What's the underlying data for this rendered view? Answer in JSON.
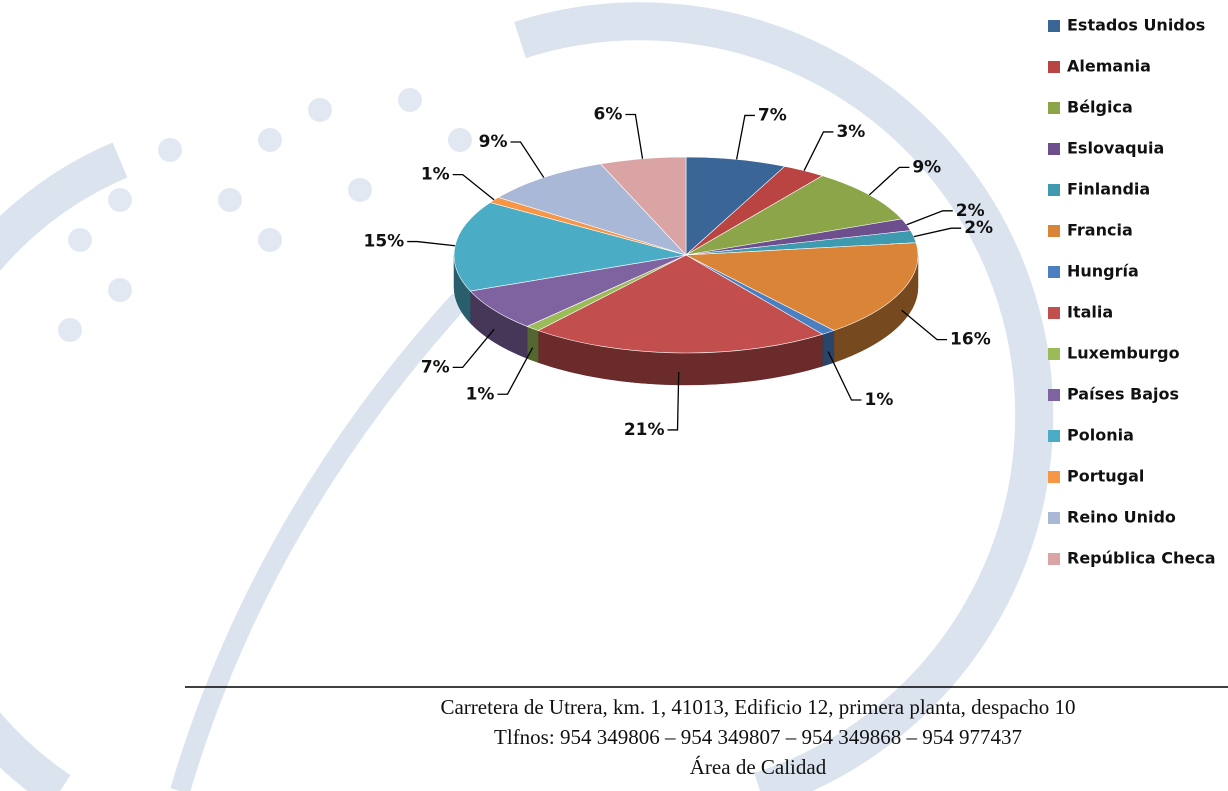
{
  "chart_data": {
    "type": "pie",
    "categories": [
      "Estados Unidos",
      "Alemania",
      "Bélgica",
      "Eslovaquia",
      "Finlandia",
      "Francia",
      "Hungría",
      "Italia",
      "Luxemburgo",
      "Países Bajos",
      "Polonia",
      "Portugal",
      "Reino Unido",
      "República Checa"
    ],
    "values": [
      7,
      3,
      9,
      2,
      2,
      16,
      1,
      21,
      1,
      7,
      15,
      1,
      9,
      6
    ],
    "value_labels": [
      "7%",
      "3%",
      "9%",
      "2%",
      "2%",
      "16%",
      "1%",
      "21%",
      "1%",
      "7%",
      "15%",
      "1%",
      "9%",
      "6%"
    ],
    "colors": [
      "#3A6597",
      "#B94441",
      "#8BA548",
      "#6D4F8D",
      "#3E9AAE",
      "#D98437",
      "#4A7FC1",
      "#C24E4E",
      "#9BBB59",
      "#7F62A0",
      "#4BACC6",
      "#F79646",
      "#A9B8D6",
      "#D9A4A3"
    ],
    "legend": "right"
  },
  "footer": {
    "lines": [
      "Carretera de Utrera, km. 1, 41013, Edificio 12, primera planta, despacho 10",
      "Tlfnos: 954 349806 – 954 349807 – 954 349868 – 954 977437",
      "Área de Calidad"
    ]
  }
}
